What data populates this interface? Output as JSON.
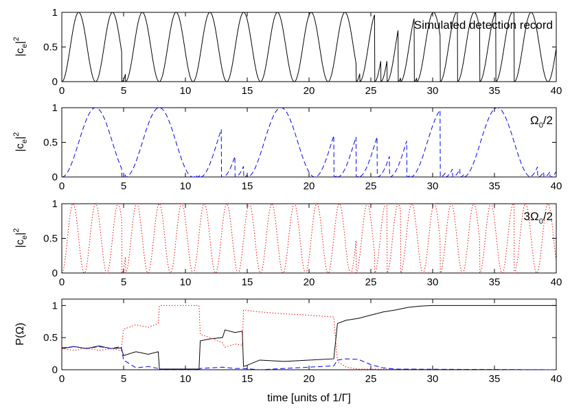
{
  "chart_data": [
    {
      "type": "line",
      "ylabel": "|c_e|^2",
      "annotation": "Simulated detection record",
      "xlim": [
        0,
        40
      ],
      "ylim": [
        0,
        1
      ],
      "xticks": [
        "0",
        "5",
        "10",
        "15",
        "20",
        "25",
        "30",
        "35",
        "40"
      ],
      "yticks": [
        "0",
        "0.5",
        "1"
      ],
      "series": [
        {
          "style": "solid",
          "color": "#000000",
          "omega": 2.3,
          "jumps": [
            4.85,
            5.15,
            23.8,
            24.1,
            25.3,
            25.8,
            26.3,
            27.2,
            27.4,
            28.5,
            28.7,
            30.6,
            32.0,
            33.8,
            35.1,
            36.6
          ]
        }
      ]
    },
    {
      "type": "line",
      "ylabel": "|c_e|^2",
      "annotation": "Ω0/2",
      "xlim": [
        0,
        40
      ],
      "ylim": [
        0,
        1
      ],
      "xticks": [
        "0",
        "5",
        "10",
        "15",
        "20",
        "25",
        "30",
        "35",
        "40"
      ],
      "yticks": [
        "0",
        "0.5",
        "1"
      ],
      "series": [
        {
          "style": "dashed",
          "color": "#0000ee",
          "omega": 1.15,
          "jumps": [
            4.85,
            5.15,
            10.9,
            11.2,
            12.9,
            13.0,
            14.0,
            14.7,
            15.0,
            22.0,
            22.3,
            23.8,
            24.0,
            25.5,
            26.5,
            27.9,
            28.2,
            30.6,
            31.0,
            31.6,
            32.2,
            32.5,
            37.8,
            38.5,
            39.0,
            39.5
          ]
        }
      ]
    },
    {
      "type": "line",
      "ylabel": "|c_e|^2",
      "annotation": "3Ω0/2",
      "xlim": [
        0,
        40
      ],
      "ylim": [
        0,
        1
      ],
      "xticks": [
        "0",
        "5",
        "10",
        "15",
        "20",
        "25",
        "30",
        "35",
        "40"
      ],
      "yticks": [
        "0",
        "0.5",
        "1"
      ],
      "series": [
        {
          "style": "dotted",
          "color": "#ee0000",
          "omega": 3.45,
          "jumps": [
            4.85,
            5.15,
            23.8,
            25.3,
            26.3,
            27.4,
            30.6,
            33.8,
            36.6
          ]
        }
      ]
    },
    {
      "type": "line",
      "xlabel": "time [units of 1/Γ]",
      "ylabel": "P(Ω)",
      "xlim": [
        0,
        40
      ],
      "ylim": [
        0,
        1.1
      ],
      "xticks": [
        "0",
        "5",
        "10",
        "15",
        "20",
        "25",
        "30",
        "35",
        "40"
      ],
      "yticks": [
        "0",
        "0.5",
        "1"
      ],
      "series": [
        {
          "style": "solid",
          "color": "#000000",
          "points": [
            [
              0,
              0.33
            ],
            [
              1,
              0.36
            ],
            [
              2,
              0.33
            ],
            [
              3,
              0.37
            ],
            [
              4,
              0.33
            ],
            [
              4.8,
              0.34
            ],
            [
              5,
              0.22
            ],
            [
              6,
              0.28
            ],
            [
              7,
              0.24
            ],
            [
              7.8,
              0.28
            ],
            [
              7.9,
              0.01
            ],
            [
              11.1,
              0.01
            ],
            [
              11.2,
              0.45
            ],
            [
              12,
              0.48
            ],
            [
              13,
              0.5
            ],
            [
              13.2,
              0.62
            ],
            [
              14,
              0.58
            ],
            [
              14.6,
              0.6
            ],
            [
              14.7,
              0.05
            ],
            [
              15,
              0.07
            ],
            [
              16,
              0.15
            ],
            [
              18,
              0.13
            ],
            [
              20,
              0.15
            ],
            [
              22,
              0.17
            ],
            [
              22.3,
              0.72
            ],
            [
              23,
              0.77
            ],
            [
              24,
              0.8
            ],
            [
              25,
              0.85
            ],
            [
              26,
              0.9
            ],
            [
              27,
              0.93
            ],
            [
              28,
              0.97
            ],
            [
              29,
              0.99
            ],
            [
              30,
              1.0
            ],
            [
              40,
              1.0
            ]
          ]
        },
        {
          "style": "dotted",
          "color": "#ee0000",
          "points": [
            [
              0,
              0.33
            ],
            [
              1,
              0.3
            ],
            [
              2,
              0.34
            ],
            [
              3,
              0.3
            ],
            [
              4,
              0.33
            ],
            [
              4.8,
              0.3
            ],
            [
              5,
              0.63
            ],
            [
              6,
              0.7
            ],
            [
              7,
              0.66
            ],
            [
              7.8,
              0.72
            ],
            [
              7.9,
              1.0
            ],
            [
              11.1,
              1.0
            ],
            [
              11.2,
              0.55
            ],
            [
              12,
              0.5
            ],
            [
              13,
              0.42
            ],
            [
              13.2,
              0.35
            ],
            [
              14,
              0.4
            ],
            [
              14.6,
              0.38
            ],
            [
              14.7,
              0.93
            ],
            [
              16,
              0.9
            ],
            [
              18,
              0.87
            ],
            [
              20,
              0.85
            ],
            [
              22,
              0.82
            ],
            [
              22.3,
              0.13
            ],
            [
              23,
              0.04
            ],
            [
              24,
              0.01
            ],
            [
              40,
              0.0
            ]
          ]
        },
        {
          "style": "dashed",
          "color": "#0000ee",
          "points": [
            [
              0,
              0.34
            ],
            [
              1,
              0.36
            ],
            [
              2,
              0.33
            ],
            [
              3,
              0.36
            ],
            [
              4,
              0.33
            ],
            [
              4.8,
              0.36
            ],
            [
              5,
              0.15
            ],
            [
              6,
              0.03
            ],
            [
              7,
              0.05
            ],
            [
              7.8,
              0.02
            ],
            [
              7.9,
              0.0
            ],
            [
              11.1,
              0.0
            ],
            [
              11.2,
              0.02
            ],
            [
              13,
              0.04
            ],
            [
              14,
              0.02
            ],
            [
              14.7,
              0.02
            ],
            [
              16,
              0.0
            ],
            [
              18,
              0.02
            ],
            [
              20,
              0.04
            ],
            [
              22,
              0.06
            ],
            [
              22.3,
              0.15
            ],
            [
              23,
              0.17
            ],
            [
              24,
              0.16
            ],
            [
              25,
              0.08
            ],
            [
              26,
              0.03
            ],
            [
              27,
              0.01
            ],
            [
              40,
              0.0
            ]
          ]
        }
      ]
    }
  ]
}
